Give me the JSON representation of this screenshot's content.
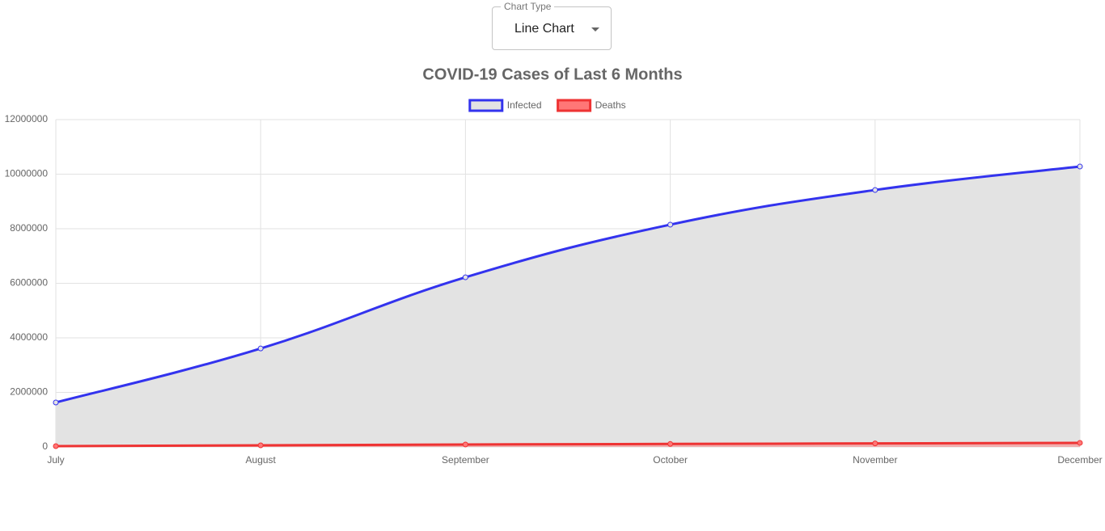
{
  "control": {
    "label": "Chart Type",
    "value": "Line Chart"
  },
  "chart_data": {
    "type": "line",
    "title": "COVID-19 Cases of Last 6 Months",
    "categories": [
      "July",
      "August",
      "September",
      "October",
      "November",
      "December"
    ],
    "series": [
      {
        "name": "Infected",
        "color": "#3333ee",
        "fill": "#e3e3e3",
        "values": [
          1630000,
          3610000,
          6220000,
          8150000,
          9420000,
          10280000
        ]
      },
      {
        "name": "Deaths",
        "color": "#ee3333",
        "fill": "#ff7777",
        "values": [
          30000,
          60000,
          90000,
          110000,
          130000,
          150000
        ]
      }
    ],
    "ylim": [
      0,
      12000000
    ],
    "yticks": [
      0,
      2000000,
      4000000,
      6000000,
      8000000,
      10000000,
      12000000
    ],
    "grid": true,
    "legend": "top"
  }
}
